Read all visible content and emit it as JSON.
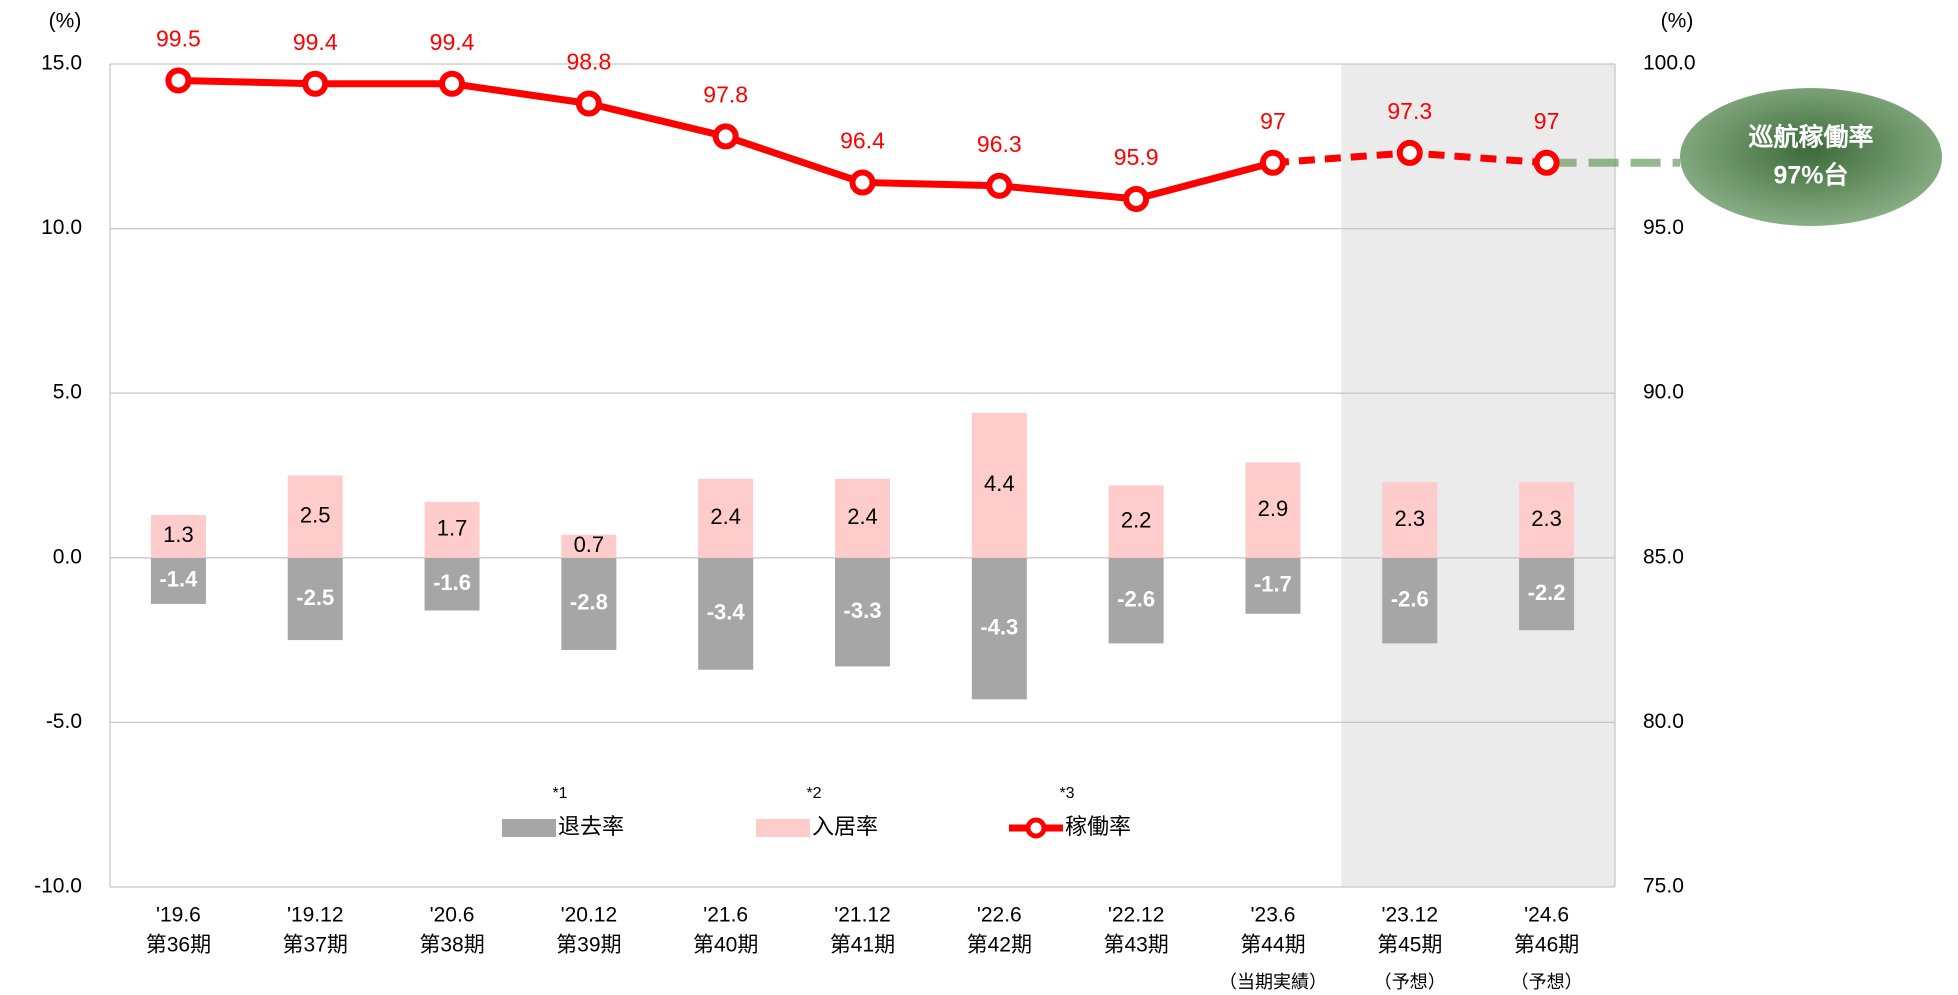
{
  "chart_data": {
    "type": "bar_line",
    "y_axis_label": "(%)",
    "y2_axis_label": "(%)",
    "categories": [
      "'19.6",
      "'19.12",
      "'20.6",
      "'20.12",
      "'21.6",
      "'21.12",
      "'22.6",
      "'22.12",
      "'23.6",
      "'23.12",
      "'24.6"
    ],
    "periods": [
      "第36期",
      "第37期",
      "第38期",
      "第39期",
      "第40期",
      "第41期",
      "第42期",
      "第43期",
      "第44期",
      "第45期",
      "第46期"
    ],
    "notes": [
      null,
      null,
      null,
      null,
      null,
      null,
      null,
      null,
      "（当期実績）",
      "（予想）",
      "（予想）"
    ],
    "series": [
      {
        "name": "退去率",
        "footnote": "*1",
        "type": "bar",
        "color": "#a6a6a6",
        "values": [
          -1.4,
          -2.5,
          -1.6,
          -2.8,
          -3.4,
          -3.3,
          -4.3,
          -2.6,
          -1.7,
          -2.6,
          -2.2
        ]
      },
      {
        "name": "入居率",
        "footnote": "*2",
        "type": "bar",
        "color": "#ffcccc",
        "values": [
          1.3,
          2.5,
          1.7,
          0.7,
          2.4,
          2.4,
          4.4,
          2.2,
          2.9,
          2.3,
          2.3
        ]
      },
      {
        "name": "稼働率",
        "footnote": "*3",
        "type": "line",
        "axis": "y2",
        "color": "#ff0000",
        "dashed_from": 8,
        "values": [
          99.5,
          99.4,
          99.4,
          98.8,
          97.8,
          96.4,
          96.3,
          95.9,
          97.0,
          97.3,
          97.0
        ]
      }
    ],
    "ylim": [
      -10,
      15
    ],
    "yticks": [
      {
        "value": -10,
        "label": "-10.0"
      },
      {
        "value": -5,
        "label": "-5.0"
      },
      {
        "value": 0,
        "label": "0.0"
      },
      {
        "value": 5,
        "label": "5.0"
      },
      {
        "value": 10,
        "label": "10.0"
      },
      {
        "value": 15,
        "label": "15.0"
      }
    ],
    "y2lim": [
      75,
      100
    ],
    "y2ticks": [
      {
        "value": 75,
        "label": "75.0"
      },
      {
        "value": 80,
        "label": "80.0"
      },
      {
        "value": 85,
        "label": "85.0"
      },
      {
        "value": 90,
        "label": "90.0"
      },
      {
        "value": 95,
        "label": "95.0"
      },
      {
        "value": 100,
        "label": "100.0"
      }
    ],
    "grid": true,
    "shaded_categories": [
      9,
      10
    ],
    "annotation": [
      "巡航稼働率",
      "97%台"
    ]
  }
}
